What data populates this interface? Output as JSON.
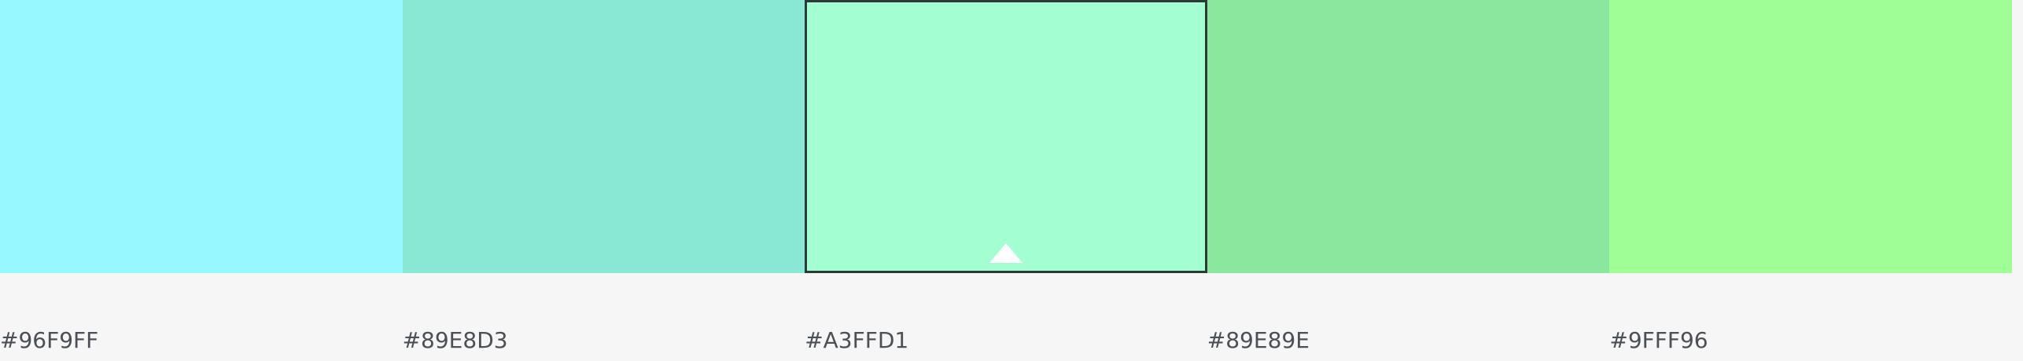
{
  "palette": {
    "swatches": [
      {
        "hex": "#96F9FF",
        "color": "#96F9FF",
        "selected": false
      },
      {
        "hex": "#89E8D3",
        "color": "#89E8D3",
        "selected": false
      },
      {
        "hex": "#A3FFD1",
        "color": "#A3FFD1",
        "selected": true,
        "indicator_icon": "caret-up-icon"
      },
      {
        "hex": "#89E89E",
        "color": "#89E89E",
        "selected": false
      },
      {
        "hex": "#9FFF96",
        "color": "#9FFF96",
        "selected": false
      }
    ]
  },
  "colors": {
    "background": "#F6F6F6",
    "label_text": "#4B4F56",
    "selection_border": "#2B3A35",
    "indicator": "#FFFFFF"
  }
}
